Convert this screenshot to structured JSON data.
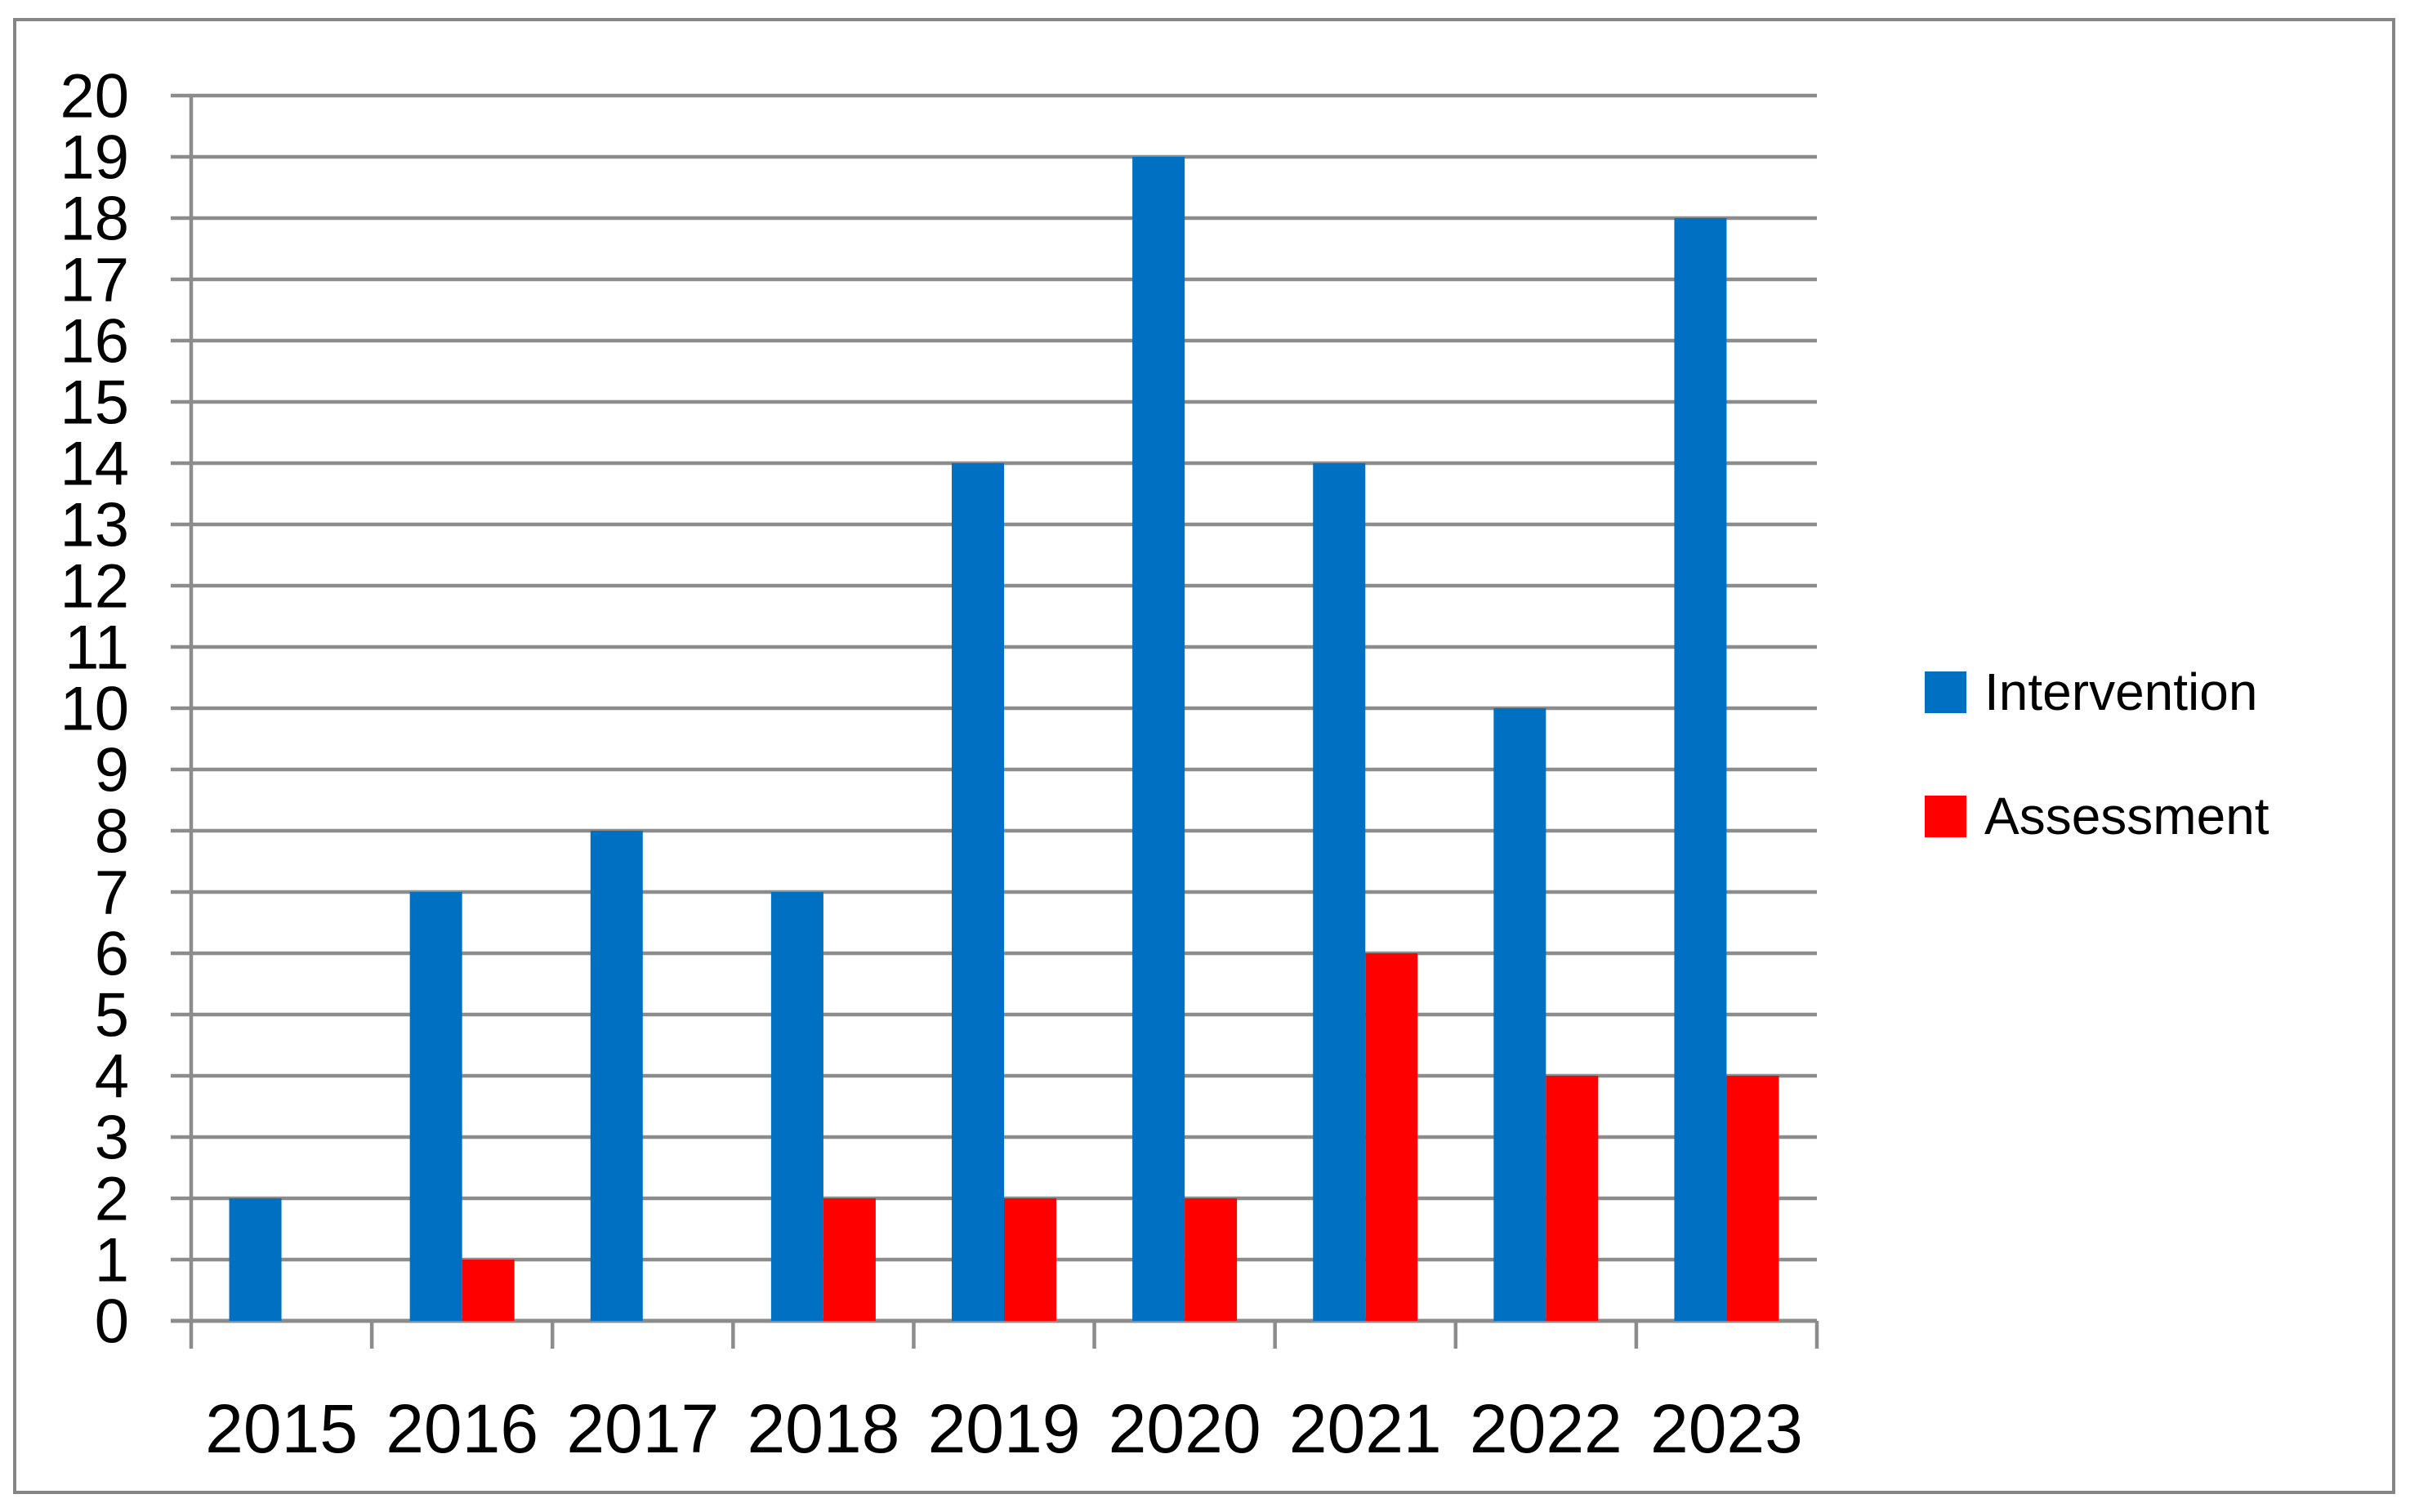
{
  "chart_data": {
    "type": "bar",
    "title": "",
    "categories": [
      "2015",
      "2016",
      "2017",
      "2018",
      "2019",
      "2020",
      "2021",
      "2022",
      "2023"
    ],
    "series": [
      {
        "name": "Intervention",
        "color": "#0070C2",
        "values": [
          2,
          7,
          8,
          7,
          14,
          19,
          14,
          10,
          18
        ]
      },
      {
        "name": "Assessment",
        "color": "#FF0000",
        "values": [
          0,
          1,
          0,
          2,
          2,
          2,
          6,
          4,
          4
        ]
      }
    ],
    "xlabel": "",
    "ylabel": "",
    "ylim": [
      0,
      20
    ],
    "ytick_step": 1,
    "yticks": [
      0,
      1,
      2,
      3,
      4,
      5,
      6,
      7,
      8,
      9,
      10,
      11,
      12,
      13,
      14,
      15,
      16,
      17,
      18,
      19,
      20
    ],
    "grid": true,
    "legend_position": "right-center"
  },
  "legend": {
    "items": [
      {
        "label": "Intervention",
        "color": "#0070C2"
      },
      {
        "label": "Assessment",
        "color": "#FF0000"
      }
    ]
  },
  "colors": {
    "background": "#FFFFFF",
    "grid": "#8C8C8C",
    "axis": "#8C8C8C",
    "figure_border": "#858585",
    "text": "#000000",
    "series_blue": "#0070C2",
    "series_red": "#FF0000"
  }
}
